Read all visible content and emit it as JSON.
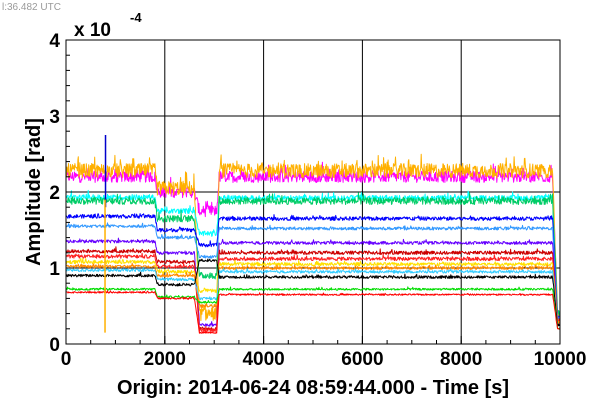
{
  "header": {
    "timestamp": "l:36.482 UTC"
  },
  "chart_data": {
    "type": "line",
    "title": "",
    "xlabel": "Origin: 2014-06-24 08:59:44.000 - Time  [s]",
    "ylabel": "Amplitude  [rad]",
    "y_multiplier": "x 10",
    "y_multiplier_exponent": "-4",
    "xlim": [
      0,
      10000
    ],
    "ylim": [
      0,
      4
    ],
    "x_ticks": [
      "0",
      "2000",
      "4000",
      "6000",
      "8000",
      "10000"
    ],
    "y_ticks": [
      "0",
      "1",
      "2",
      "3",
      "4"
    ],
    "grid": true,
    "legend": "none",
    "segment_breaks_x": [
      1800,
      2600,
      3100
    ],
    "series": [
      {
        "color": "#ff00ff",
        "noise": 0.3,
        "points": [
          [
            0,
            2.2
          ],
          [
            1800,
            2.2
          ],
          [
            1850,
            2.0
          ],
          [
            2600,
            2.0
          ],
          [
            2700,
            1.75
          ],
          [
            3050,
            1.75
          ],
          [
            3100,
            2.2
          ],
          [
            9850,
            2.2
          ],
          [
            9950,
            0.3
          ],
          [
            10000,
            0.3
          ]
        ]
      },
      {
        "color": "#ffb000",
        "noise": 0.38,
        "points": [
          [
            0,
            2.28
          ],
          [
            1800,
            2.28
          ],
          [
            1850,
            2.05
          ],
          [
            2600,
            2.05
          ],
          [
            2700,
            0.4
          ],
          [
            3050,
            0.4
          ],
          [
            3100,
            2.28
          ],
          [
            9850,
            2.28
          ],
          [
            9950,
            0.4
          ],
          [
            10000,
            0.4
          ]
        ]
      },
      {
        "color": "#00ffff",
        "noise": 0.14,
        "points": [
          [
            0,
            1.93
          ],
          [
            1800,
            1.93
          ],
          [
            1850,
            1.75
          ],
          [
            2600,
            1.75
          ],
          [
            2700,
            1.45
          ],
          [
            3050,
            1.45
          ],
          [
            3100,
            1.92
          ],
          [
            9850,
            1.92
          ],
          [
            9950,
            0.4
          ],
          [
            10000,
            0.4
          ]
        ]
      },
      {
        "color": "#00cc66",
        "noise": 0.18,
        "points": [
          [
            0,
            1.88
          ],
          [
            1800,
            1.88
          ],
          [
            1850,
            1.65
          ],
          [
            2600,
            1.65
          ],
          [
            2700,
            0.9
          ],
          [
            3050,
            0.9
          ],
          [
            3100,
            1.88
          ],
          [
            9850,
            1.88
          ],
          [
            9950,
            0.4
          ],
          [
            10000,
            0.4
          ]
        ]
      },
      {
        "color": "#0000ff",
        "noise": 0.1,
        "points": [
          [
            0,
            1.68
          ],
          [
            1800,
            1.68
          ],
          [
            1850,
            1.5
          ],
          [
            2600,
            1.5
          ],
          [
            2700,
            1.3
          ],
          [
            3050,
            1.3
          ],
          [
            3100,
            1.65
          ],
          [
            9850,
            1.65
          ],
          [
            9950,
            0.35
          ],
          [
            10000,
            0.35
          ]
        ]
      },
      {
        "color": "#3399ff",
        "noise": 0.08,
        "points": [
          [
            0,
            1.55
          ],
          [
            1800,
            1.55
          ],
          [
            1850,
            1.4
          ],
          [
            2600,
            1.4
          ],
          [
            2700,
            1.15
          ],
          [
            3050,
            1.15
          ],
          [
            3100,
            1.52
          ],
          [
            9850,
            1.52
          ],
          [
            9950,
            0.35
          ],
          [
            10000,
            0.35
          ]
        ]
      },
      {
        "color": "#6600ff",
        "noise": 0.08,
        "points": [
          [
            0,
            1.35
          ],
          [
            1800,
            1.35
          ],
          [
            1850,
            1.2
          ],
          [
            2600,
            1.2
          ],
          [
            2700,
            0.25
          ],
          [
            3050,
            0.25
          ],
          [
            3100,
            1.33
          ],
          [
            9850,
            1.33
          ],
          [
            9950,
            0.3
          ],
          [
            10000,
            0.3
          ]
        ]
      },
      {
        "color": "#cc0000",
        "noise": 0.09,
        "points": [
          [
            0,
            1.22
          ],
          [
            1800,
            1.22
          ],
          [
            1850,
            1.08
          ],
          [
            2600,
            1.08
          ],
          [
            2700,
            0.2
          ],
          [
            3050,
            0.2
          ],
          [
            3100,
            1.2
          ],
          [
            9850,
            1.2
          ],
          [
            9950,
            0.3
          ],
          [
            10000,
            0.3
          ]
        ]
      },
      {
        "color": "#ff2020",
        "noise": 0.09,
        "points": [
          [
            0,
            1.15
          ],
          [
            1800,
            1.15
          ],
          [
            1850,
            1.02
          ],
          [
            2600,
            1.02
          ],
          [
            2700,
            0.18
          ],
          [
            3050,
            0.18
          ],
          [
            3100,
            1.12
          ],
          [
            9850,
            1.12
          ],
          [
            9950,
            0.3
          ],
          [
            10000,
            0.3
          ]
        ]
      },
      {
        "color": "#ffe000",
        "noise": 0.09,
        "points": [
          [
            0,
            1.08
          ],
          [
            1800,
            1.08
          ],
          [
            1850,
            0.95
          ],
          [
            2600,
            0.95
          ],
          [
            2700,
            0.7
          ],
          [
            3050,
            0.7
          ],
          [
            3100,
            1.05
          ],
          [
            9850,
            1.05
          ],
          [
            9950,
            0.28
          ],
          [
            10000,
            0.28
          ]
        ]
      },
      {
        "color": "#ff8800",
        "noise": 0.08,
        "points": [
          [
            0,
            1.02
          ],
          [
            1800,
            1.02
          ],
          [
            1850,
            0.9
          ],
          [
            2600,
            0.9
          ],
          [
            2700,
            0.5
          ],
          [
            3050,
            0.5
          ],
          [
            3100,
            1.0
          ],
          [
            9850,
            1.0
          ],
          [
            9950,
            0.28
          ],
          [
            10000,
            0.28
          ]
        ]
      },
      {
        "color": "#33ccff",
        "noise": 0.07,
        "points": [
          [
            0,
            0.97
          ],
          [
            1800,
            0.97
          ],
          [
            1850,
            0.85
          ],
          [
            2600,
            0.85
          ],
          [
            2700,
            0.6
          ],
          [
            3050,
            0.6
          ],
          [
            3100,
            0.95
          ],
          [
            9850,
            0.95
          ],
          [
            9950,
            0.25
          ],
          [
            10000,
            0.25
          ]
        ]
      },
      {
        "color": "#000000",
        "noise": 0.07,
        "points": [
          [
            0,
            0.9
          ],
          [
            1800,
            0.9
          ],
          [
            1850,
            0.78
          ],
          [
            2600,
            0.78
          ],
          [
            2700,
            1.1
          ],
          [
            3050,
            1.1
          ],
          [
            3100,
            0.88
          ],
          [
            9850,
            0.88
          ],
          [
            9950,
            0.25
          ],
          [
            10000,
            0.25
          ]
        ]
      },
      {
        "color": "#00dd00",
        "noise": 0.05,
        "points": [
          [
            0,
            0.72
          ],
          [
            1800,
            0.72
          ],
          [
            1850,
            0.62
          ],
          [
            2600,
            0.62
          ],
          [
            2700,
            0.55
          ],
          [
            3050,
            0.55
          ],
          [
            3100,
            0.72
          ],
          [
            9850,
            0.72
          ],
          [
            9950,
            0.2
          ],
          [
            10000,
            0.2
          ]
        ]
      },
      {
        "color": "#ff0000",
        "noise": 0.04,
        "points": [
          [
            0,
            0.68
          ],
          [
            1800,
            0.68
          ],
          [
            1850,
            0.6
          ],
          [
            2600,
            0.6
          ],
          [
            2700,
            0.15
          ],
          [
            3050,
            0.15
          ],
          [
            3100,
            0.65
          ],
          [
            9850,
            0.65
          ],
          [
            9950,
            0.2
          ],
          [
            10000,
            0.2
          ]
        ]
      }
    ],
    "spikes": [
      {
        "color": "#0000cc",
        "x": 800,
        "y_from": 1.8,
        "y_to": 2.75
      },
      {
        "color": "#ffb000",
        "x": 790,
        "y_from": 0.15,
        "y_to": 1.9
      }
    ]
  }
}
